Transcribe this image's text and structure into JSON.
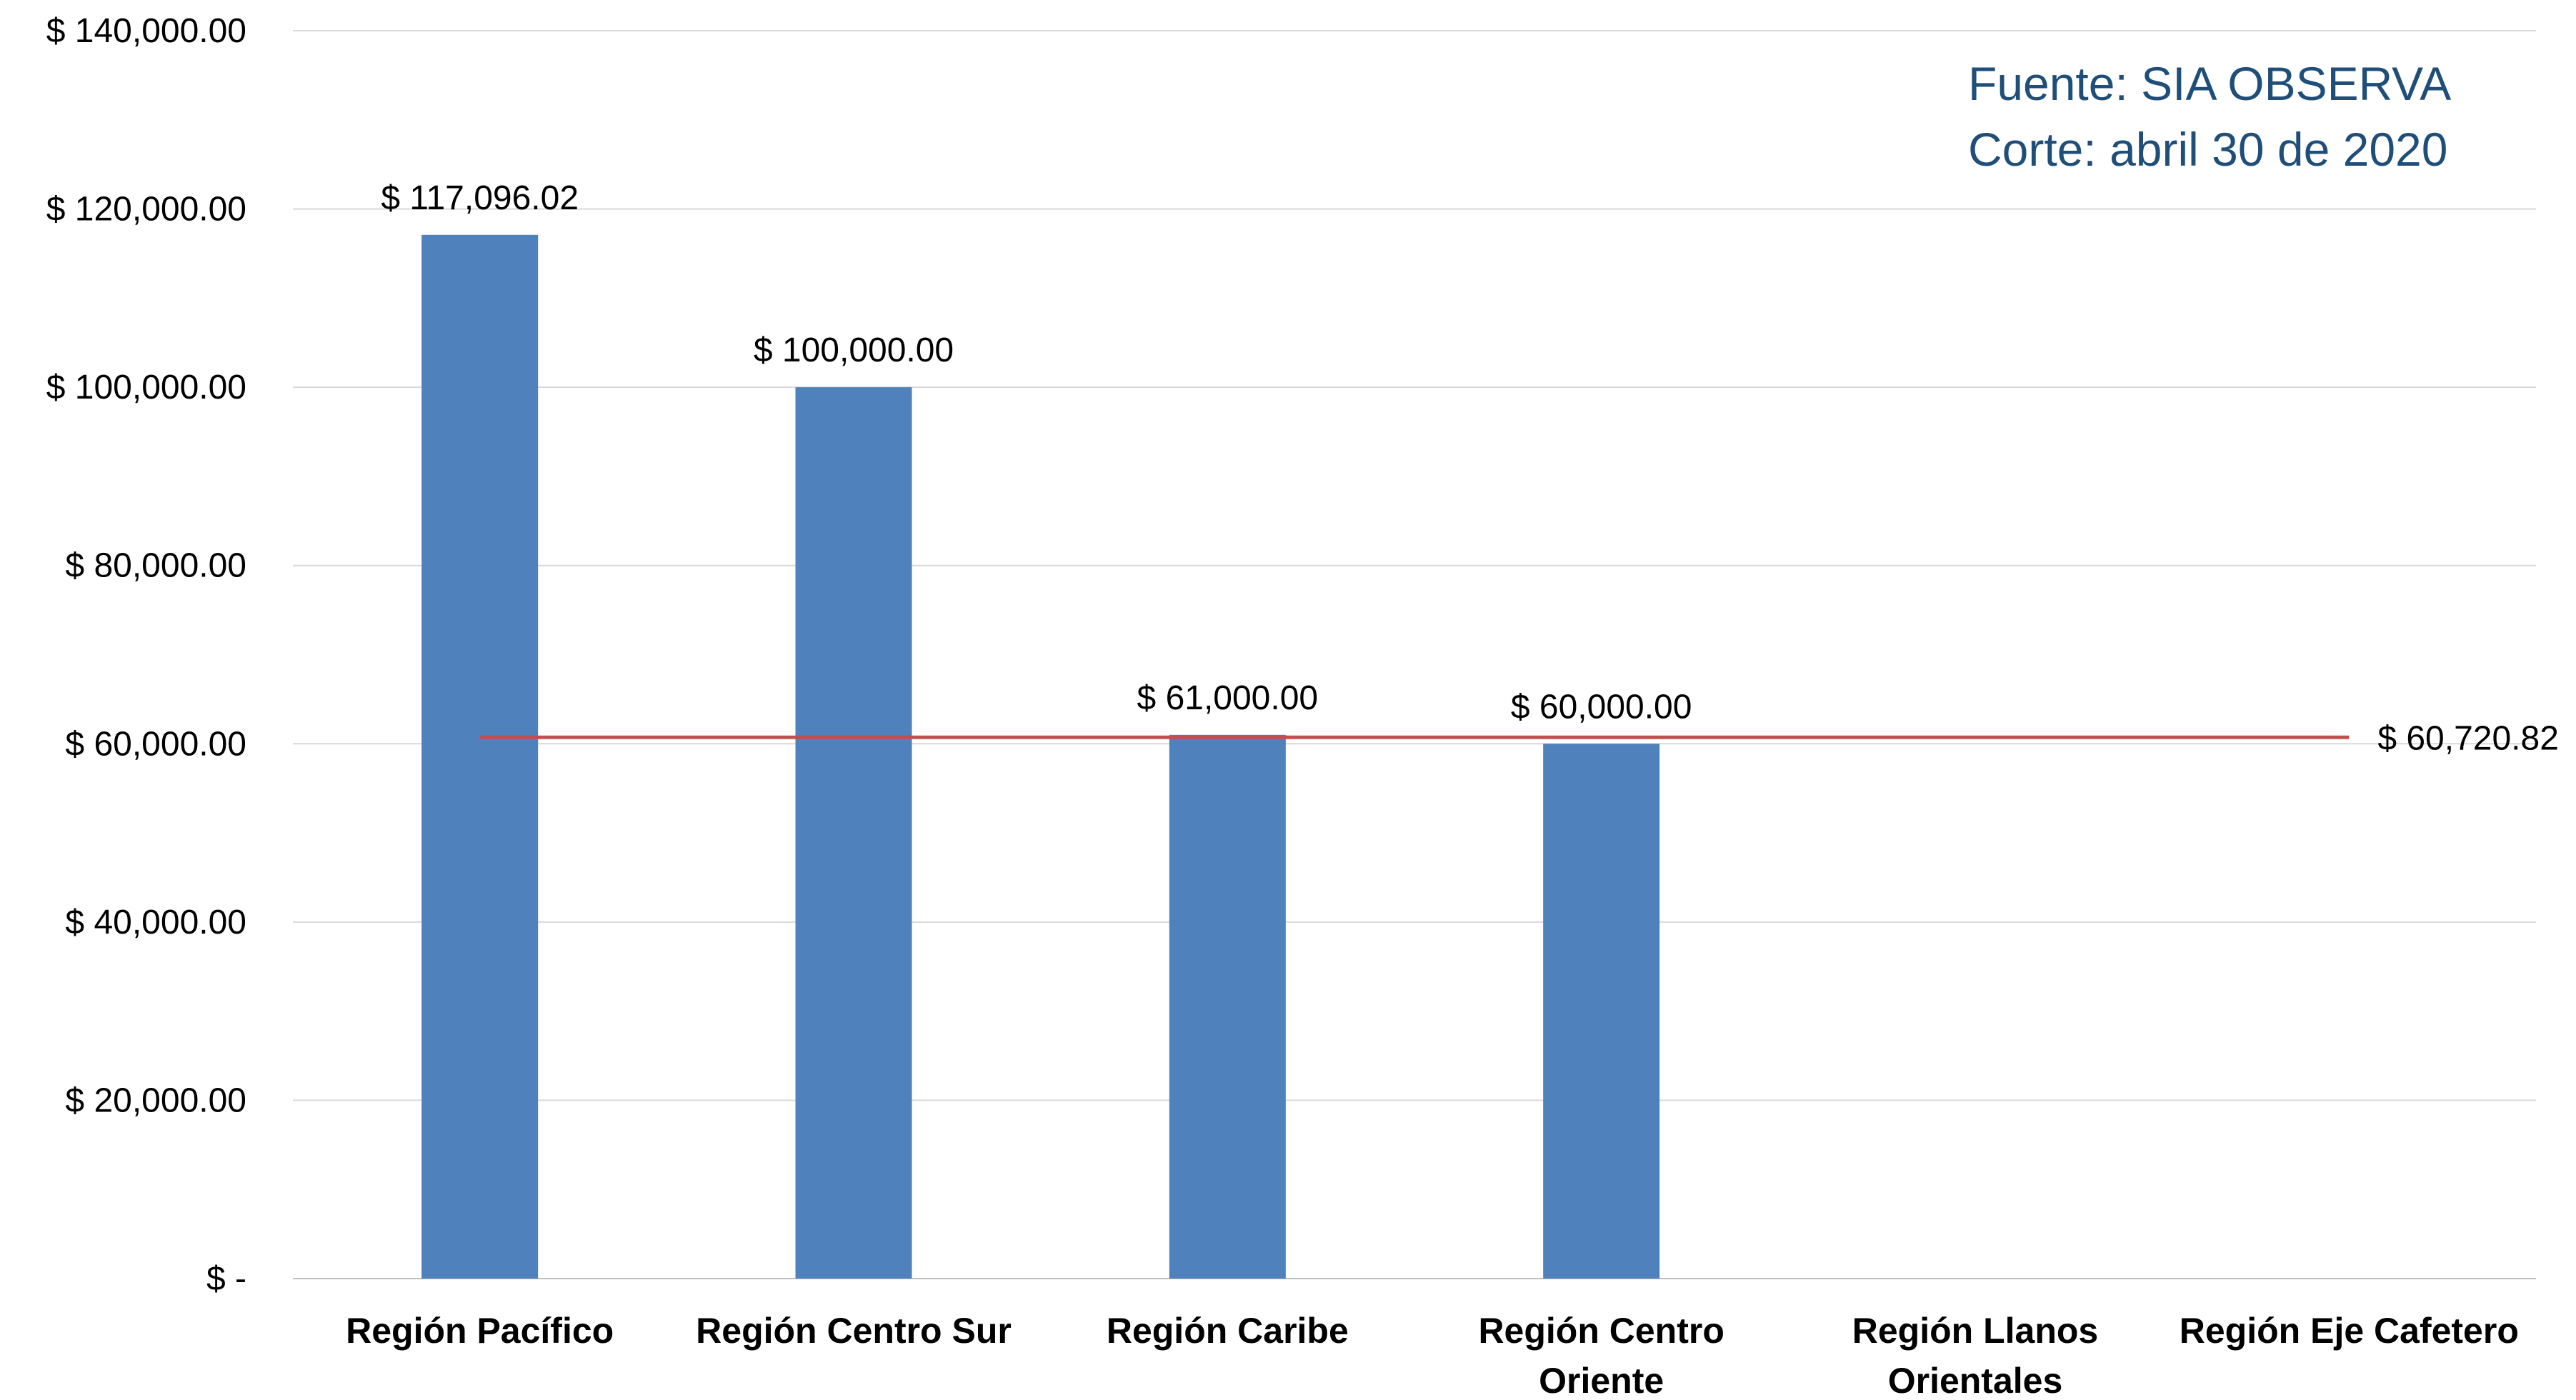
{
  "chart_data": {
    "type": "bar",
    "title": "",
    "xlabel": "",
    "ylabel": "",
    "categories": [
      [
        "Región Pacífico"
      ],
      [
        "Región Centro Sur"
      ],
      [
        "Región Caribe"
      ],
      [
        "Región Centro",
        "Oriente"
      ],
      [
        "Región Llanos",
        "Orientales"
      ],
      [
        "Región Eje Cafetero"
      ]
    ],
    "values": [
      117096.02,
      100000.0,
      61000.0,
      60000.0,
      null,
      null
    ],
    "data_labels": [
      "$ 117,096.02",
      "$ 100,000.00",
      "$ 61,000.00",
      "$ 60,000.00",
      null,
      null
    ],
    "ylim": [
      0,
      140000
    ],
    "yticks": [
      0,
      20000,
      40000,
      60000,
      80000,
      100000,
      120000,
      140000
    ],
    "ytick_labels": [
      "$ -",
      "$ 20,000.00",
      "$ 40,000.00",
      "$ 60,000.00",
      "$ 80,000.00",
      "$ 100,000.00",
      "$ 120,000.00",
      "$ 140,000.00"
    ],
    "grid": true,
    "reference_line": {
      "value": 60720.82,
      "label": "$ 60,720.82",
      "color": "#c0504d"
    },
    "bar_color": "#4f81bd"
  },
  "annotations": {
    "source_line1": "Fuente: SIA OBSERVA",
    "source_line2": "Corte: abril 30 de 2020",
    "source_color": "#1f4e79"
  }
}
